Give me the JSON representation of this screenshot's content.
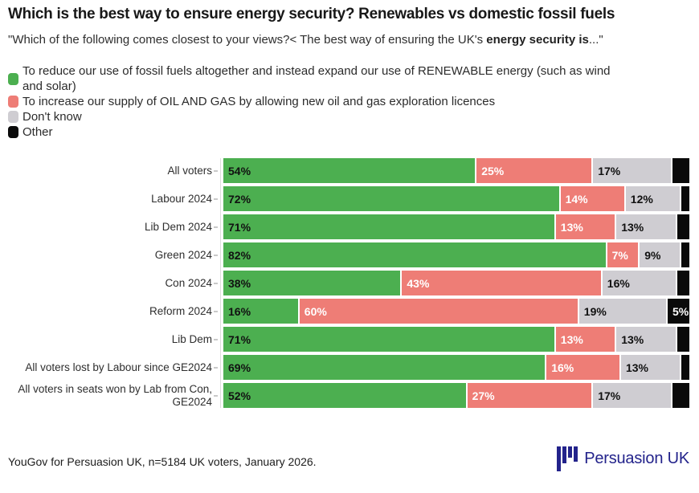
{
  "header": {
    "title": "Which is the best way to ensure energy security? Renewables vs domestic fossil fuels",
    "subtitle_prefix": "\"Which of the following comes closest to your views?< The best way of ensuring the UK's ",
    "subtitle_bold": "energy security is",
    "subtitle_suffix": "...\""
  },
  "colors": {
    "renewables": "#4caf50",
    "oil_gas": "#ee7d76",
    "dont_know": "#cfcdd2",
    "other": "#0a0a0a",
    "logo_navy": "#23238b"
  },
  "legend": {
    "items": [
      {
        "key": "renewables",
        "color": "#4caf50",
        "label": "To reduce our use of fossil fuels altogether and instead expand our use of RENEWABLE energy (such as wind and solar)"
      },
      {
        "key": "oil_gas",
        "color": "#ee7d76",
        "label": "To increase our supply of OIL AND GAS by allowing new oil and gas exploration licences"
      },
      {
        "key": "dont_know",
        "color": "#cfcdd2",
        "label": "Don't know"
      },
      {
        "key": "other",
        "color": "#0a0a0a",
        "label": "Other"
      }
    ]
  },
  "chart_data": {
    "type": "bar",
    "orientation": "horizontal_stacked",
    "xlim": [
      0,
      100
    ],
    "value_suffix": "%",
    "grid": false,
    "legend_position": "top-left",
    "categories": [
      "All voters",
      "Labour 2024",
      "Lib Dem 2024",
      "Green 2024",
      "Con 2024",
      "Reform 2024",
      "Lib Dem",
      "All voters lost by Labour since GE2024",
      "All voters in seats won by Lab from Con, GE2024"
    ],
    "series": [
      {
        "key": "renewables",
        "name": "To reduce our use of fossil fuels altogether and instead expand our use of RENEWABLE energy (such as wind and solar)",
        "color": "#4caf50",
        "label_color": "#111111",
        "label_min": 0,
        "values": [
          54,
          72,
          71,
          82,
          38,
          16,
          71,
          69,
          52
        ]
      },
      {
        "key": "oil_gas",
        "name": "To increase our supply of OIL AND GAS by allowing new oil and gas exploration licences",
        "color": "#ee7d76",
        "label_color": "#ffffff",
        "label_min": 0,
        "values": [
          25,
          14,
          13,
          7,
          43,
          60,
          13,
          16,
          27
        ]
      },
      {
        "key": "dont_know",
        "name": "Don't know",
        "color": "#cfcdd2",
        "label_color": "#111111",
        "label_min": 0,
        "values": [
          17,
          12,
          13,
          9,
          16,
          19,
          13,
          13,
          17
        ]
      },
      {
        "key": "other",
        "name": "Other",
        "color": "#0a0a0a",
        "label_color": "#ffffff",
        "label_min": 5,
        "values": [
          4,
          2,
          3,
          2,
          3,
          5,
          3,
          2,
          4
        ]
      }
    ]
  },
  "footer": {
    "source": "YouGov for Persuasion UK, n=5184 UK voters, January 2026.",
    "logo_text": "Persuasion UK"
  }
}
